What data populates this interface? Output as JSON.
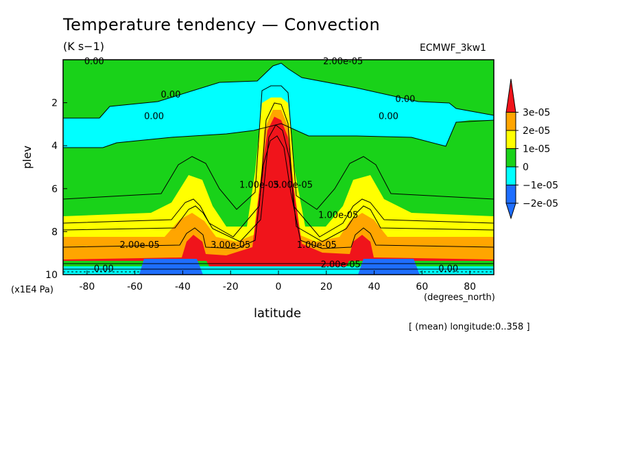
{
  "title": "Temperature tendency — Convection",
  "units": "(K s−1)",
  "dataset": "ECMWF_3kw1",
  "note": "[ (mean) longitude:0..358 ]",
  "chart_data": {
    "type": "heatmap",
    "title": "Temperature tendency — Convection",
    "xlabel": "latitude",
    "ylabel": "plev",
    "x_unit": "(degrees_north)",
    "y_unit": "(x1E4 Pa)",
    "xlim": [
      -90,
      90
    ],
    "ylim": [
      10,
      0
    ],
    "x_ticks": [
      -80,
      -60,
      -40,
      -20,
      0,
      20,
      40,
      60,
      80
    ],
    "y_ticks": [
      2,
      4,
      6,
      8,
      10
    ],
    "legend": {
      "placement": "right",
      "labels": [
        "3e-05",
        "2e-05",
        "1e-05",
        "0",
        "−1e-05",
        "−2e-05"
      ],
      "colors": [
        "#f0141b",
        "#ffa500",
        "#ffff00",
        "#19d219",
        "#00ffff",
        "#1e6eff",
        "#1e6eff"
      ]
    },
    "contour_labels": [
      {
        "text": "0.00",
        "lat": -77,
        "plev": 0.05
      },
      {
        "text": "2.00e-05",
        "lat": 27,
        "plev": 0.05
      },
      {
        "text": "0.00",
        "lat": -45,
        "plev": 1.6
      },
      {
        "text": "0.00",
        "lat": -52,
        "plev": 2.6
      },
      {
        "text": "0.00",
        "lat": 53,
        "plev": 1.8
      },
      {
        "text": "0.00",
        "lat": 46,
        "plev": 2.6
      },
      {
        "text": "1.00e-05",
        "lat": -8,
        "plev": 5.8
      },
      {
        "text": "3.00e-05",
        "lat": 6,
        "plev": 5.8
      },
      {
        "text": "1.00e-05",
        "lat": 25,
        "plev": 7.2
      },
      {
        "text": "2.00e-05",
        "lat": -58,
        "plev": 8.6
      },
      {
        "text": "3.00e-05",
        "lat": -20,
        "plev": 8.6
      },
      {
        "text": "1.00e-05",
        "lat": 16,
        "plev": 8.6
      },
      {
        "text": "2.00e-05",
        "lat": 26,
        "plev": 9.5
      },
      {
        "text": "0.00",
        "lat": -73,
        "plev": 9.7
      },
      {
        "text": "0.00",
        "lat": 71,
        "plev": 9.7
      }
    ]
  }
}
